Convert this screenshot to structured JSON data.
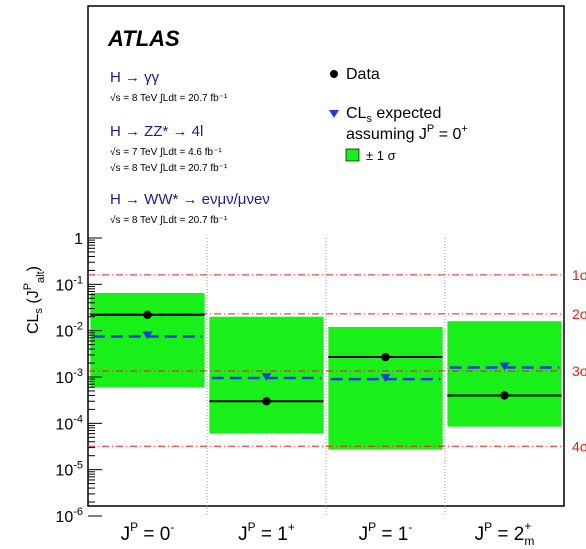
{
  "experiment": "ATLAS",
  "channels": [
    {
      "title": "H → γγ",
      "lines": [
        "√s = 8 TeV ∫Ldt = 20.7 fb⁻¹"
      ]
    },
    {
      "title": "H → ZZ* → 4l",
      "lines": [
        "√s = 7 TeV ∫Ldt = 4.6 fb⁻¹",
        "√s = 8 TeV ∫Ldt = 20.7 fb⁻¹"
      ]
    },
    {
      "title": "H → WW* → eνμν/μνeν",
      "lines": [
        "√s = 8 TeV ∫Ldt = 20.7 fb⁻¹"
      ]
    }
  ],
  "legend": {
    "data": "Data",
    "expected_line1": "CL",
    "expected_sub": "s",
    "expected_rest": " expected",
    "expected_line2": "assuming J",
    "expected_sup": "P",
    "expected_tail": " = 0",
    "expected_tail_sup": "+",
    "band": "± 1 σ"
  },
  "colors": {
    "band": "#19f019",
    "expected": "#1e3cdc",
    "data": "#000000",
    "sigma_lines": "#e0201b",
    "channel_text": "#1c1c8a"
  },
  "chart_data": {
    "type": "scatter",
    "yscale": "log",
    "ylim": [
      1e-06,
      1
    ],
    "ylabel": "CLs (J^P_alt)",
    "ylabel_parts": {
      "main": "CL",
      "sub": "s",
      "open": " (J",
      "sup": "P",
      "sub2": "alt",
      "close": ")"
    },
    "yticks": [
      {
        "value": 1,
        "label": "1"
      },
      {
        "value": 0.1,
        "label": "10",
        "exp": "-1"
      },
      {
        "value": 0.01,
        "label": "10",
        "exp": "-2"
      },
      {
        "value": 0.001,
        "label": "10",
        "exp": "-3"
      },
      {
        "value": 0.0001,
        "label": "10",
        "exp": "-4"
      },
      {
        "value": 1e-05,
        "label": "10",
        "exp": "-5"
      },
      {
        "value": 1e-06,
        "label": "10",
        "exp": "-6"
      }
    ],
    "categories": [
      {
        "label": "J",
        "sup": "P",
        "eq": " = 0",
        "qsup": "-",
        "qsub": ""
      },
      {
        "label": "J",
        "sup": "P",
        "eq": " = 1",
        "qsup": "+",
        "qsub": ""
      },
      {
        "label": "J",
        "sup": "P",
        "eq": " = 1",
        "qsup": "-",
        "qsub": ""
      },
      {
        "label": "J",
        "sup": "P",
        "eq": " = 2",
        "qsup": "+",
        "qsub": "m"
      }
    ],
    "series": [
      {
        "name": "Data",
        "values": [
          0.022,
          0.0003,
          0.0027,
          0.0004
        ]
      },
      {
        "name": "CLs expected assuming JP = 0+",
        "values": [
          0.0075,
          0.00095,
          0.0009,
          0.0016
        ]
      },
      {
        "name": "± 1 σ",
        "band_low": [
          0.0006,
          6e-05,
          2.7e-05,
          8.5e-05
        ],
        "band_high": [
          0.065,
          0.02,
          0.012,
          0.016
        ]
      }
    ],
    "significance_lines": [
      {
        "label": "1σ",
        "value": 0.16
      },
      {
        "label": "2σ",
        "value": 0.023
      },
      {
        "label": "3σ",
        "value": 0.00135
      },
      {
        "label": "4σ",
        "value": 3.2e-05
      }
    ]
  }
}
